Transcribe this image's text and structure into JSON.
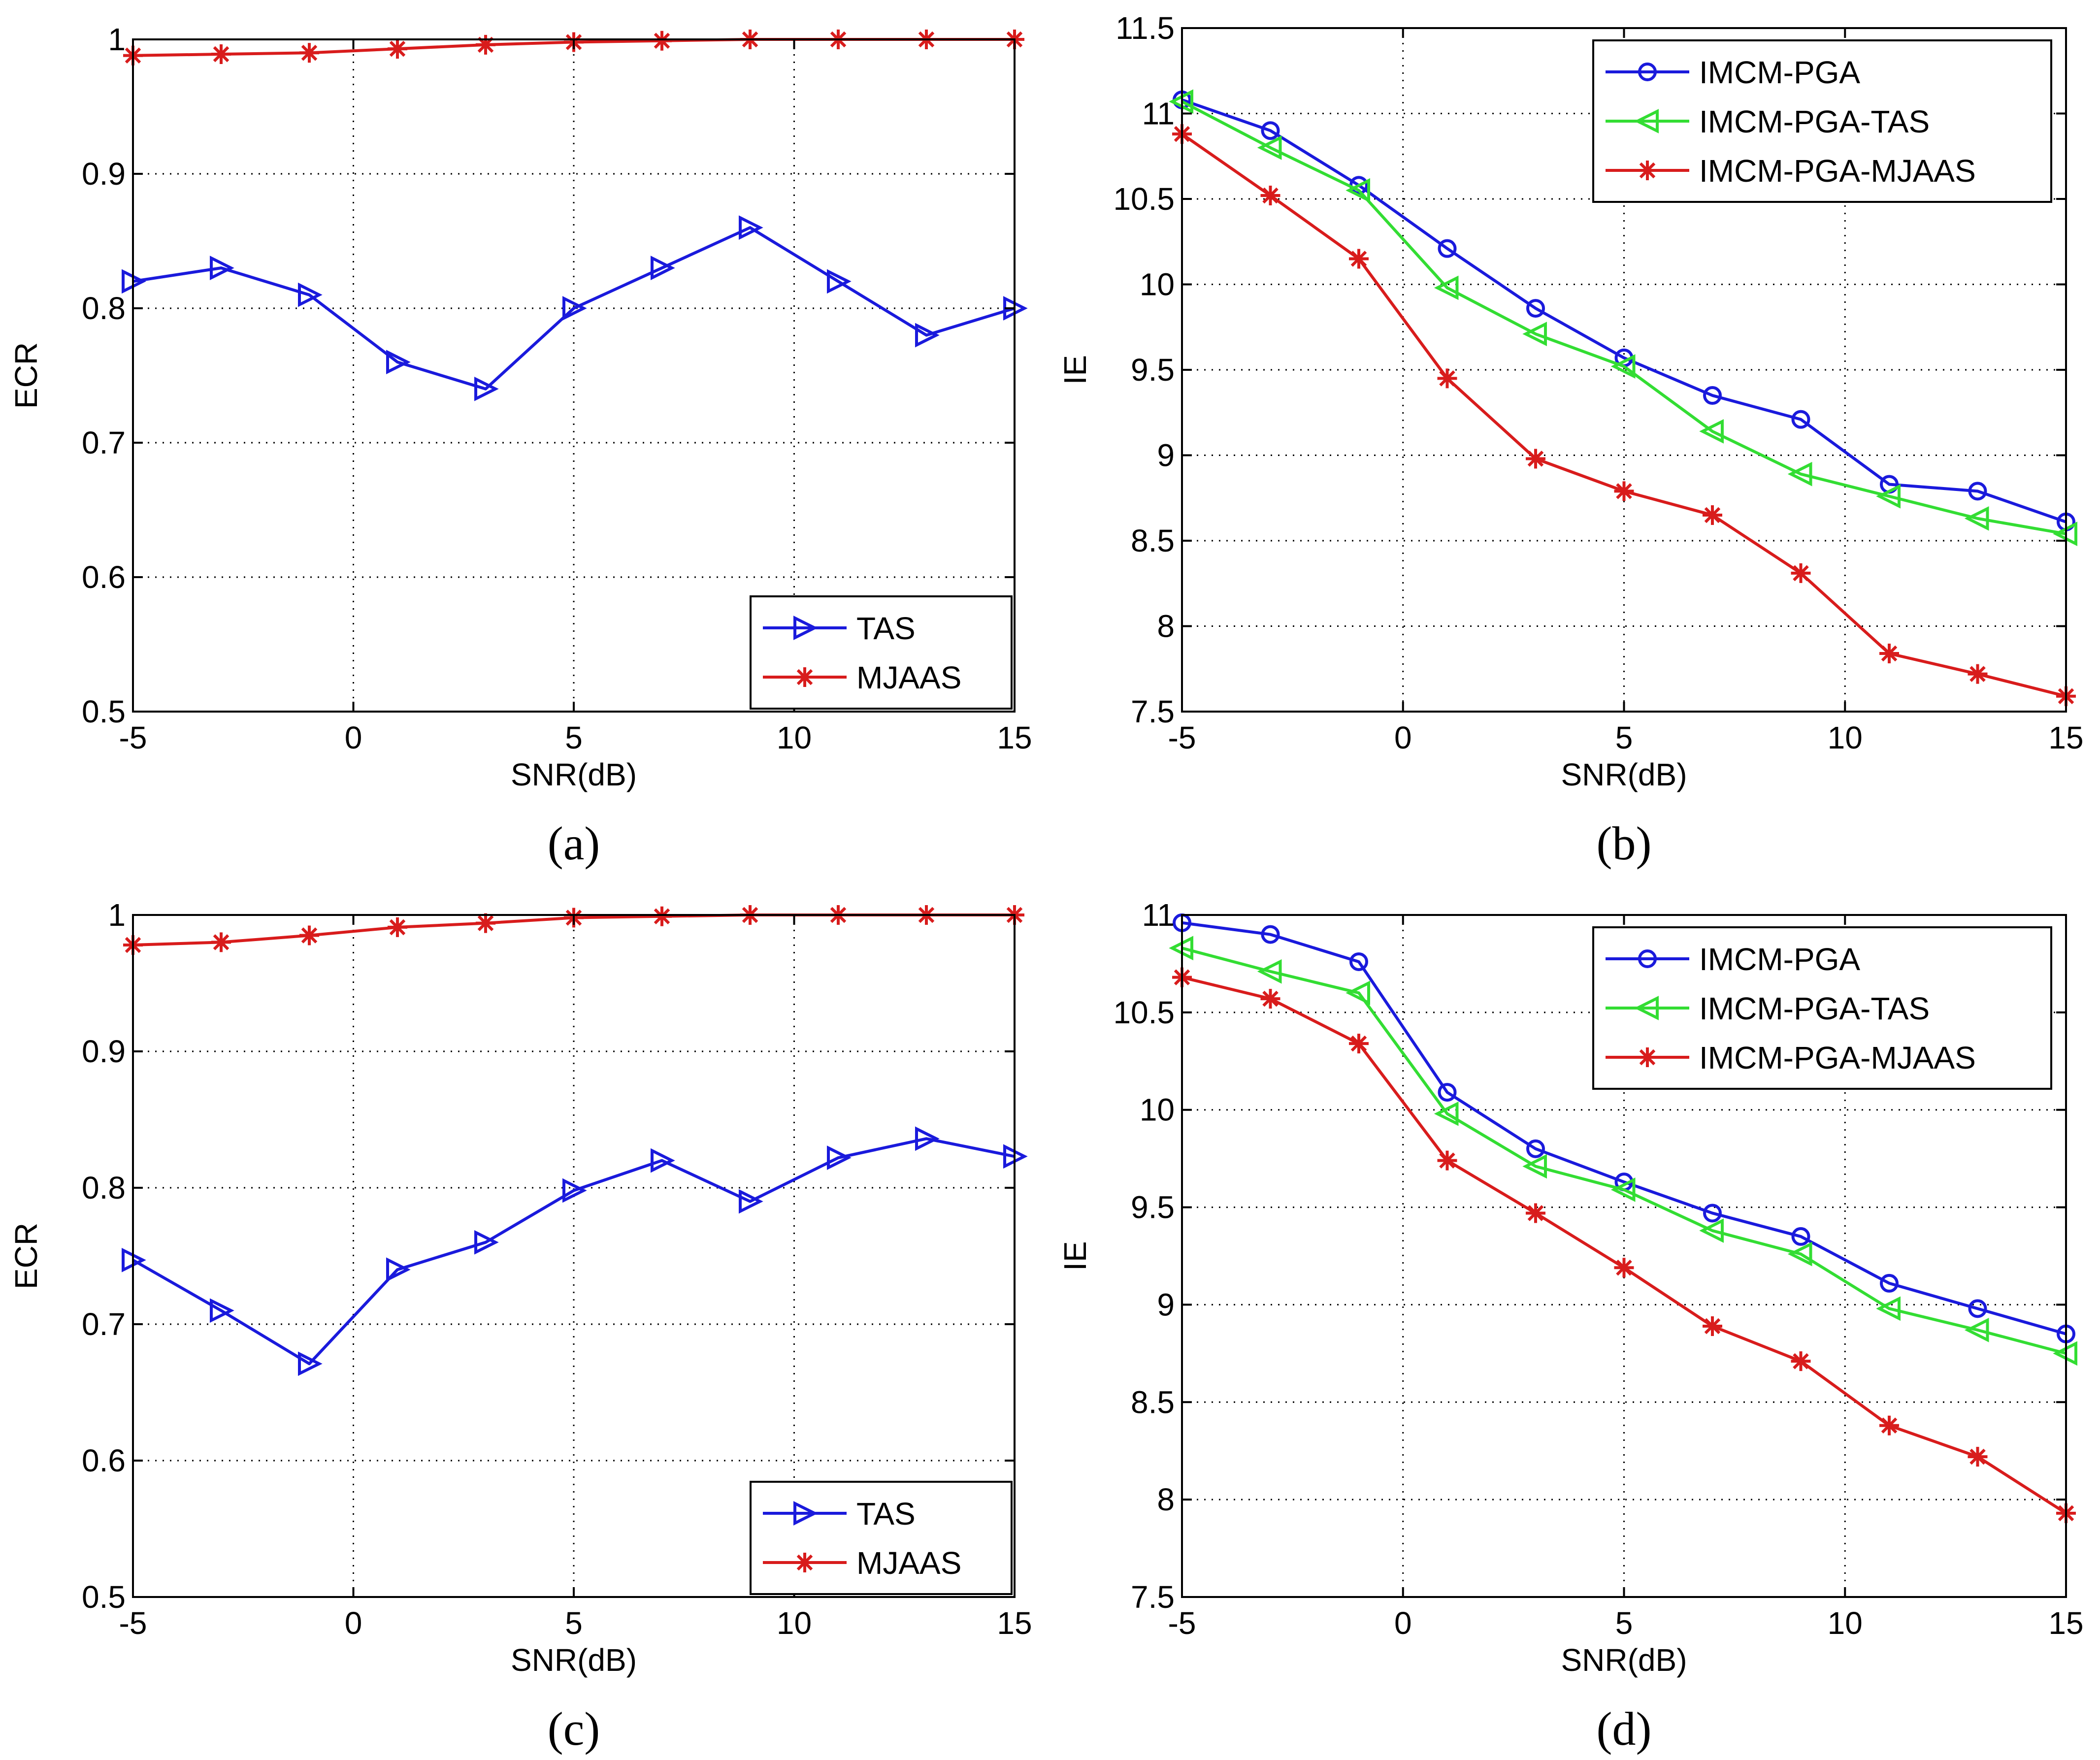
{
  "chart_data": [
    {
      "id": "a",
      "type": "line",
      "caption": "(a)",
      "xlabel": "SNR(dB)",
      "ylabel": "ECR",
      "xlim": [
        -5,
        15
      ],
      "ylim": [
        0.5,
        1
      ],
      "xticks": [
        -5,
        0,
        5,
        10,
        15
      ],
      "yticks": [
        0.5,
        0.6,
        0.7,
        0.8,
        0.9,
        1
      ],
      "xtick_labels": [
        "-5",
        "0",
        "5",
        "10",
        "15"
      ],
      "ytick_labels": [
        "0.5",
        "0.6",
        "0.7",
        "0.8",
        "0.9",
        "1"
      ],
      "grid": true,
      "legend_position": "bottom-right",
      "x": [
        -5,
        -3,
        -1,
        1,
        3,
        5,
        7,
        9,
        11,
        13,
        15
      ],
      "series": [
        {
          "name": "TAS",
          "color": "#1a1adc",
          "marker": "triangle-right",
          "values": [
            0.82,
            0.83,
            0.81,
            0.76,
            0.74,
            0.8,
            0.83,
            0.86,
            0.82,
            0.78,
            0.8
          ]
        },
        {
          "name": "MJAAS",
          "color": "#d81c1c",
          "marker": "star",
          "values": [
            0.988,
            0.989,
            0.99,
            0.993,
            0.996,
            0.998,
            0.999,
            1.0,
            1.0,
            1.0,
            1.0
          ]
        }
      ]
    },
    {
      "id": "b",
      "type": "line",
      "caption": "(b)",
      "xlabel": "SNR(dB)",
      "ylabel": "IE",
      "xlim": [
        -5,
        15
      ],
      "ylim": [
        7.5,
        11.5
      ],
      "xticks": [
        -5,
        0,
        5,
        10,
        15
      ],
      "yticks": [
        7.5,
        8,
        8.5,
        9,
        9.5,
        10,
        10.5,
        11,
        11.5
      ],
      "xtick_labels": [
        "-5",
        "0",
        "5",
        "10",
        "15"
      ],
      "ytick_labels": [
        "7.5",
        "8",
        "8.5",
        "9",
        "9.5",
        "10",
        "10.5",
        "11",
        "11.5"
      ],
      "grid": true,
      "legend_position": "top-right",
      "x": [
        -5,
        -3,
        -1,
        1,
        3,
        5,
        7,
        9,
        11,
        13,
        15
      ],
      "series": [
        {
          "name": "IMCM-PGA",
          "color": "#1a1adc",
          "marker": "circle",
          "values": [
            11.08,
            10.9,
            10.58,
            10.21,
            9.86,
            9.57,
            9.35,
            9.21,
            8.83,
            8.79,
            8.61
          ]
        },
        {
          "name": "IMCM-PGA-TAS",
          "color": "#33dd33",
          "marker": "triangle-left",
          "values": [
            11.07,
            10.8,
            10.55,
            9.98,
            9.71,
            9.52,
            9.14,
            8.89,
            8.76,
            8.63,
            8.54
          ]
        },
        {
          "name": "IMCM-PGA-MJAAS",
          "color": "#d81c1c",
          "marker": "star",
          "values": [
            10.88,
            10.52,
            10.15,
            9.45,
            8.98,
            8.79,
            8.65,
            8.31,
            7.84,
            7.72,
            7.59
          ]
        }
      ]
    },
    {
      "id": "c",
      "type": "line",
      "caption": "(c)",
      "xlabel": "SNR(dB)",
      "ylabel": "ECR",
      "xlim": [
        -5,
        15
      ],
      "ylim": [
        0.5,
        1
      ],
      "xticks": [
        -5,
        0,
        5,
        10,
        15
      ],
      "yticks": [
        0.5,
        0.6,
        0.7,
        0.8,
        0.9,
        1
      ],
      "xtick_labels": [
        "-5",
        "0",
        "5",
        "10",
        "15"
      ],
      "ytick_labels": [
        "0.5",
        "0.6",
        "0.7",
        "0.8",
        "0.9",
        "1"
      ],
      "grid": true,
      "legend_position": "bottom-right",
      "x": [
        -5,
        -3,
        -1,
        1,
        3,
        5,
        7,
        9,
        11,
        13,
        15
      ],
      "series": [
        {
          "name": "TAS",
          "color": "#1a1adc",
          "marker": "triangle-right",
          "values": [
            0.747,
            0.71,
            0.671,
            0.74,
            0.76,
            0.798,
            0.82,
            0.79,
            0.822,
            0.836,
            0.823
          ]
        },
        {
          "name": "MJAAS",
          "color": "#d81c1c",
          "marker": "star",
          "values": [
            0.978,
            0.98,
            0.985,
            0.991,
            0.994,
            0.998,
            0.999,
            1.0,
            1.0,
            1.0,
            1.0
          ]
        }
      ]
    },
    {
      "id": "d",
      "type": "line",
      "caption": "(d)",
      "xlabel": "SNR(dB)",
      "ylabel": "IE",
      "xlim": [
        -5,
        15
      ],
      "ylim": [
        7.5,
        11
      ],
      "xticks": [
        -5,
        0,
        5,
        10,
        15
      ],
      "yticks": [
        7.5,
        8,
        8.5,
        9,
        9.5,
        10,
        10.5,
        11
      ],
      "xtick_labels": [
        "-5",
        "0",
        "5",
        "10",
        "15"
      ],
      "ytick_labels": [
        "7.5",
        "8",
        "8.5",
        "9",
        "9.5",
        "10",
        "10.5",
        "11"
      ],
      "grid": true,
      "legend_position": "top-right",
      "x": [
        -5,
        -3,
        -1,
        1,
        3,
        5,
        7,
        9,
        11,
        13,
        15
      ],
      "series": [
        {
          "name": "IMCM-PGA",
          "color": "#1a1adc",
          "marker": "circle",
          "values": [
            10.96,
            10.9,
            10.76,
            10.09,
            9.8,
            9.63,
            9.47,
            9.35,
            9.11,
            8.98,
            8.85
          ]
        },
        {
          "name": "IMCM-PGA-TAS",
          "color": "#33dd33",
          "marker": "triangle-left",
          "values": [
            10.83,
            10.71,
            10.6,
            9.98,
            9.71,
            9.59,
            9.38,
            9.26,
            8.98,
            8.87,
            8.75
          ]
        },
        {
          "name": "IMCM-PGA-MJAAS",
          "color": "#d81c1c",
          "marker": "star",
          "values": [
            10.68,
            10.57,
            10.34,
            9.74,
            9.47,
            9.19,
            8.89,
            8.71,
            8.38,
            8.22,
            7.93
          ]
        }
      ]
    }
  ]
}
